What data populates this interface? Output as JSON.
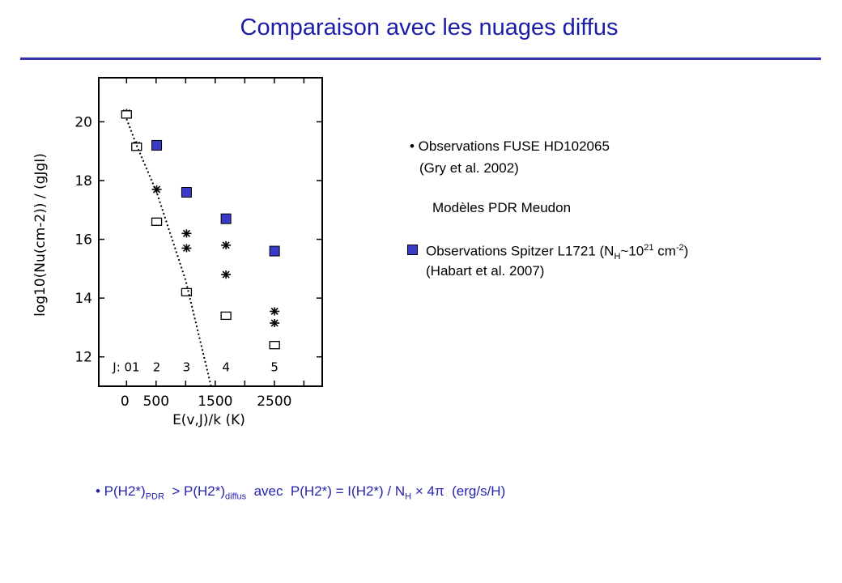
{
  "slide": {
    "title": "Comparaison avec les nuages diffus",
    "accent_color": "#1c1ca8"
  },
  "legend": {
    "fuse_line1": "• Observations FUSE HD102065",
    "fuse_line2": "(Gry et al. 2002)",
    "pdr": "Modèles PDR Meudon",
    "spitzer_pre": "Observations Spitzer L1721 (N",
    "spitzer_sub": "H",
    "spitzer_mid": "~10",
    "spitzer_sup1": "21",
    "spitzer_mid2": " cm",
    "spitzer_sup2": "-2",
    "spitzer_post": ")",
    "spitzer_line2": "(Habart et al. 2007)",
    "spitzer_color": "#3a3ac8"
  },
  "bottom": {
    "p1": "• P(H2*)",
    "s1": "PDR",
    "p2": "  > P(H2*)",
    "s2": "diffus",
    "p3": "  avec  P(H2*) = I(H2*) / N",
    "s3": "H",
    "p4": " × 4π  (erg/s/H)"
  },
  "chart_data": {
    "type": "scatter",
    "title": "",
    "xlabel": "E(v,J)/k (K)",
    "ylabel": "log10(Nu(cm-2)) / (gJgI)",
    "xlim": [
      -470,
      3310
    ],
    "ylim": [
      11,
      21.5
    ],
    "xticks": [
      0,
      500,
      1500,
      2500
    ],
    "xtick_labels": [
      "0",
      "500",
      "1500",
      "2500"
    ],
    "yticks": [
      12,
      14,
      16,
      18,
      20
    ],
    "ytick_labels": [
      "12",
      "14",
      "16",
      "18",
      "20"
    ],
    "j_labels": [
      {
        "text": "J: 01",
        "x": -5
      },
      {
        "text": "2",
        "x": 510
      },
      {
        "text": "3",
        "x": 1015
      },
      {
        "text": "4",
        "x": 1682
      },
      {
        "text": "5",
        "x": 2504
      }
    ],
    "series": [
      {
        "name": "Observations Spitzer L1721",
        "marker": "filled-square",
        "color": "#3a3ac8",
        "points": [
          [
            510,
            19.2
          ],
          [
            1015,
            17.6
          ],
          [
            1682,
            16.7
          ],
          [
            2504,
            15.6
          ]
        ]
      },
      {
        "name": "Observations FUSE HD102065",
        "marker": "asterisk",
        "color": "#000000",
        "points": [
          [
            0,
            20.3
          ],
          [
            170,
            19.2
          ],
          [
            510,
            17.7
          ],
          [
            1015,
            16.2
          ],
          [
            1015,
            15.7
          ],
          [
            1682,
            15.8
          ],
          [
            1682,
            14.8
          ],
          [
            2504,
            13.55
          ],
          [
            2504,
            13.15
          ]
        ]
      },
      {
        "name": "Modèles PDR Meudon",
        "marker": "open-square",
        "color": "#000000",
        "points": [
          [
            0,
            20.25
          ],
          [
            170,
            19.15
          ],
          [
            510,
            16.6
          ],
          [
            1015,
            14.2
          ],
          [
            1682,
            13.4
          ],
          [
            2504,
            12.4
          ]
        ]
      },
      {
        "name": "fit",
        "marker": "dotted-line",
        "color": "#000000",
        "points": [
          [
            0,
            20.1
          ],
          [
            170,
            19.2
          ],
          [
            510,
            17.6
          ],
          [
            1000,
            14.6
          ],
          [
            1430,
            11.0
          ]
        ]
      }
    ]
  }
}
